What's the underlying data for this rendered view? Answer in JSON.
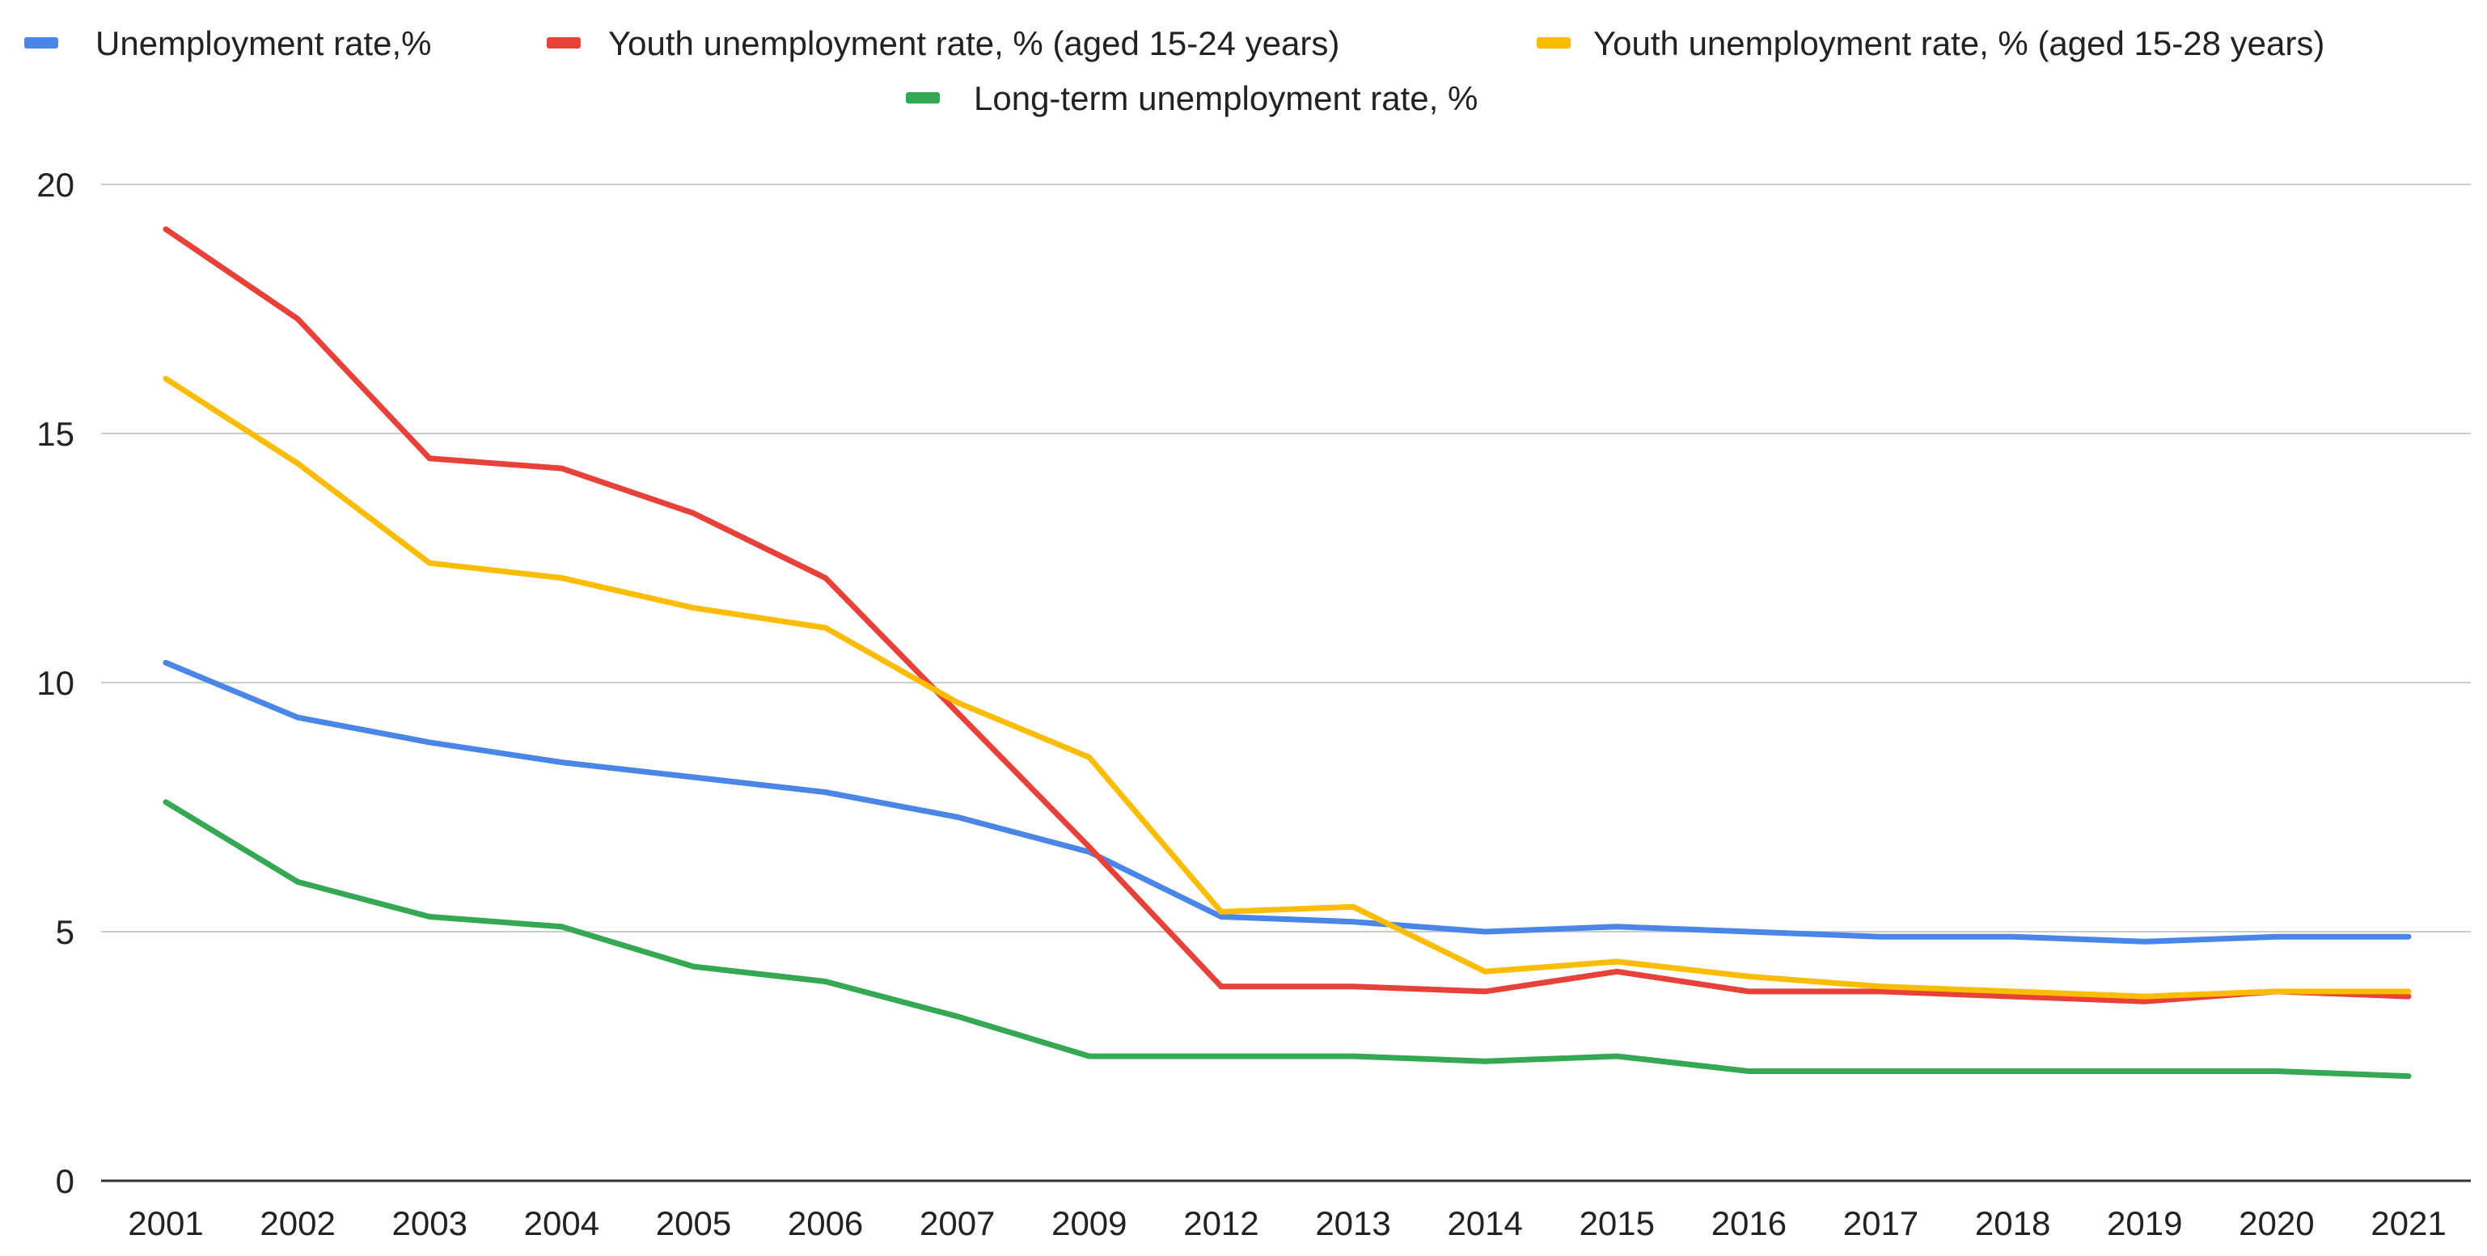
{
  "chart_data": {
    "type": "line",
    "title": "",
    "xlabel": "",
    "ylabel": "",
    "categories": [
      "2001",
      "2002",
      "2003",
      "2004",
      "2005",
      "2006",
      "2007",
      "2009",
      "2012",
      "2013",
      "2014",
      "2015",
      "2016",
      "2017",
      "2018",
      "2019",
      "2020",
      "2021"
    ],
    "ylim": [
      0,
      20
    ],
    "yticks": [
      0,
      5,
      10,
      15,
      20
    ],
    "grid": true,
    "legend_position": "top",
    "series": [
      {
        "name": "Unemployment rate,%",
        "color": "#4a86e8",
        "values": [
          10.4,
          9.3,
          8.8,
          8.4,
          8.1,
          7.8,
          7.3,
          6.6,
          5.3,
          5.2,
          5.0,
          5.1,
          5.0,
          4.9,
          4.9,
          4.8,
          4.9,
          4.9
        ]
      },
      {
        "name": "Youth unemployment rate, % (aged 15-24 years)",
        "color": "#e8413a",
        "values": [
          19.1,
          17.3,
          14.5,
          14.3,
          13.4,
          12.1,
          9.4,
          6.7,
          3.9,
          3.9,
          3.8,
          4.2,
          3.8,
          3.8,
          3.7,
          3.6,
          3.8,
          3.7
        ]
      },
      {
        "name": "Youth unemployment rate, % (aged 15-28 years)",
        "color": "#fbbc04",
        "values": [
          16.1,
          14.4,
          12.4,
          12.1,
          11.5,
          11.1,
          9.6,
          8.5,
          5.4,
          5.5,
          4.2,
          4.4,
          4.1,
          3.9,
          3.8,
          3.7,
          3.8,
          3.8
        ]
      },
      {
        "name": "Long-term unemployment rate, %",
        "color": "#34a853",
        "values": [
          7.6,
          6.0,
          5.3,
          5.1,
          4.3,
          4.0,
          3.3,
          2.5,
          2.5,
          2.5,
          2.4,
          2.5,
          2.2,
          2.2,
          2.2,
          2.2,
          2.2,
          2.1
        ]
      }
    ]
  }
}
